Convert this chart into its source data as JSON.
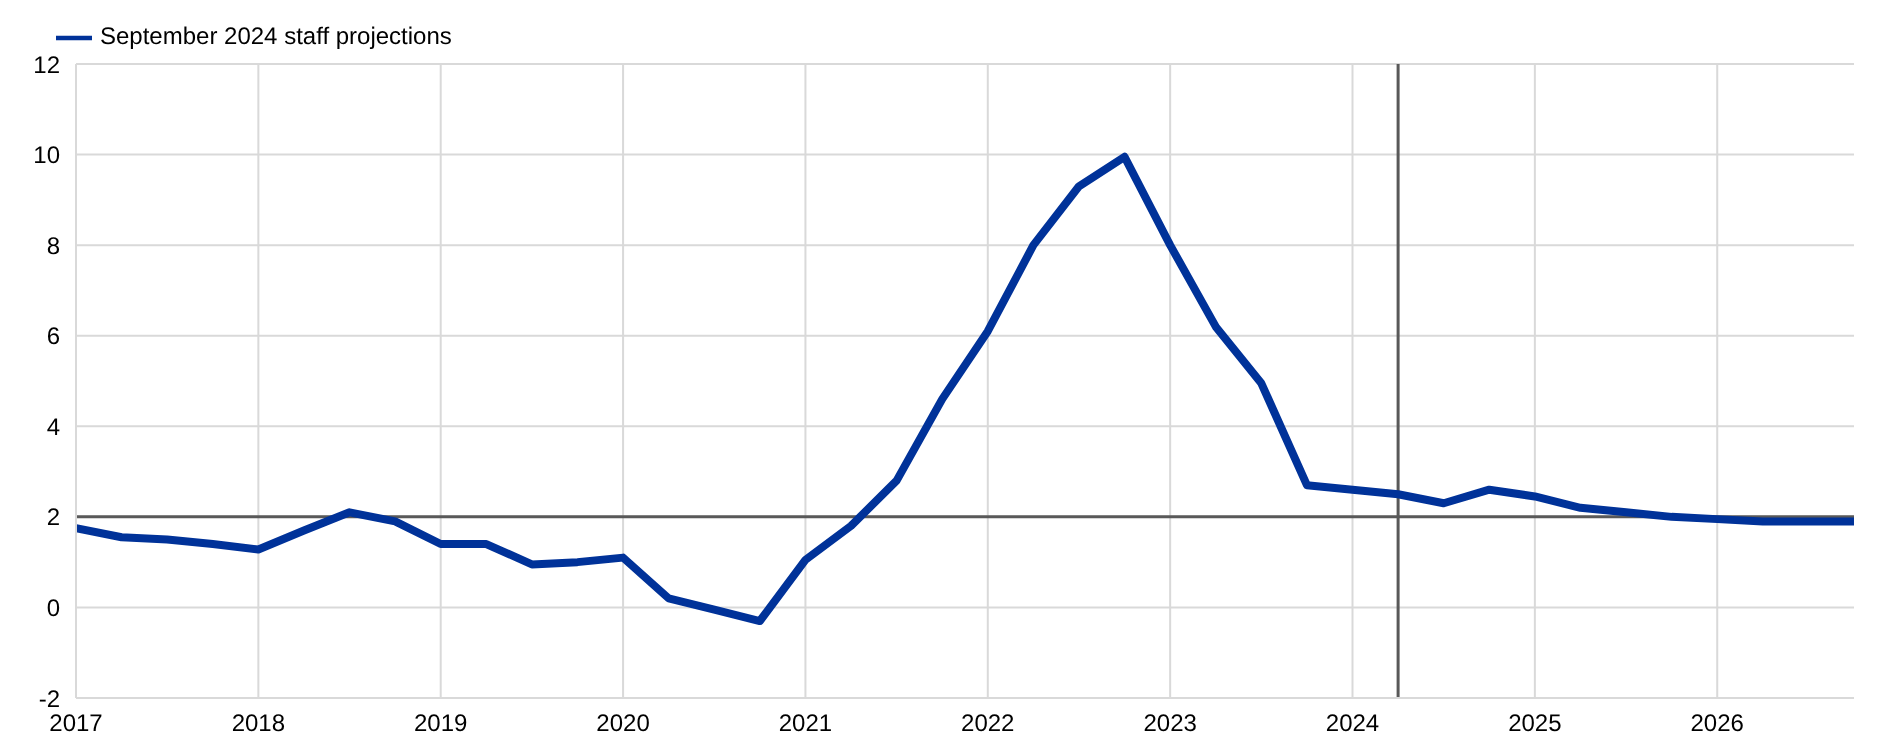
{
  "chart_data": {
    "type": "line",
    "x": [
      2017,
      2017.25,
      2017.5,
      2017.75,
      2018,
      2018.25,
      2018.5,
      2018.75,
      2019,
      2019.25,
      2019.5,
      2019.75,
      2020,
      2020.25,
      2020.5,
      2020.75,
      2021,
      2021.25,
      2021.5,
      2021.75,
      2022,
      2022.25,
      2022.5,
      2022.75,
      2023,
      2023.25,
      2023.5,
      2023.75,
      2024,
      2024.25,
      2024.5,
      2024.75,
      2025,
      2025.25,
      2025.5,
      2025.75,
      2026,
      2026.25,
      2026.5,
      2026.75
    ],
    "series": [
      {
        "name": "September 2024 staff projections",
        "color": "#003299",
        "values": [
          1.75,
          1.55,
          1.5,
          1.4,
          1.28,
          1.7,
          2.1,
          1.9,
          1.4,
          1.4,
          0.95,
          1.0,
          1.1,
          0.2,
          -0.05,
          -0.3,
          1.05,
          1.8,
          2.8,
          4.6,
          6.1,
          8.0,
          9.3,
          9.95,
          8.0,
          6.2,
          4.95,
          2.7,
          2.6,
          2.5,
          2.3,
          2.6,
          2.45,
          2.2,
          2.1,
          2.0,
          1.95,
          1.9,
          1.9,
          1.9
        ]
      }
    ],
    "xlim": [
      2017,
      2026.75
    ],
    "xticks": [
      2017,
      2018,
      2019,
      2020,
      2021,
      2022,
      2023,
      2024,
      2025,
      2026
    ],
    "ylim": [
      -2,
      12
    ],
    "yticks": [
      -2,
      0,
      2,
      4,
      6,
      8,
      10,
      12
    ],
    "ref_lines": [
      {
        "axis": "y",
        "value": 2,
        "color": "#595959"
      },
      {
        "axis": "x",
        "value": 2024.25,
        "color": "#595959"
      }
    ],
    "grid": true,
    "legend": "top left",
    "marker": "none",
    "line_style": "solid"
  }
}
